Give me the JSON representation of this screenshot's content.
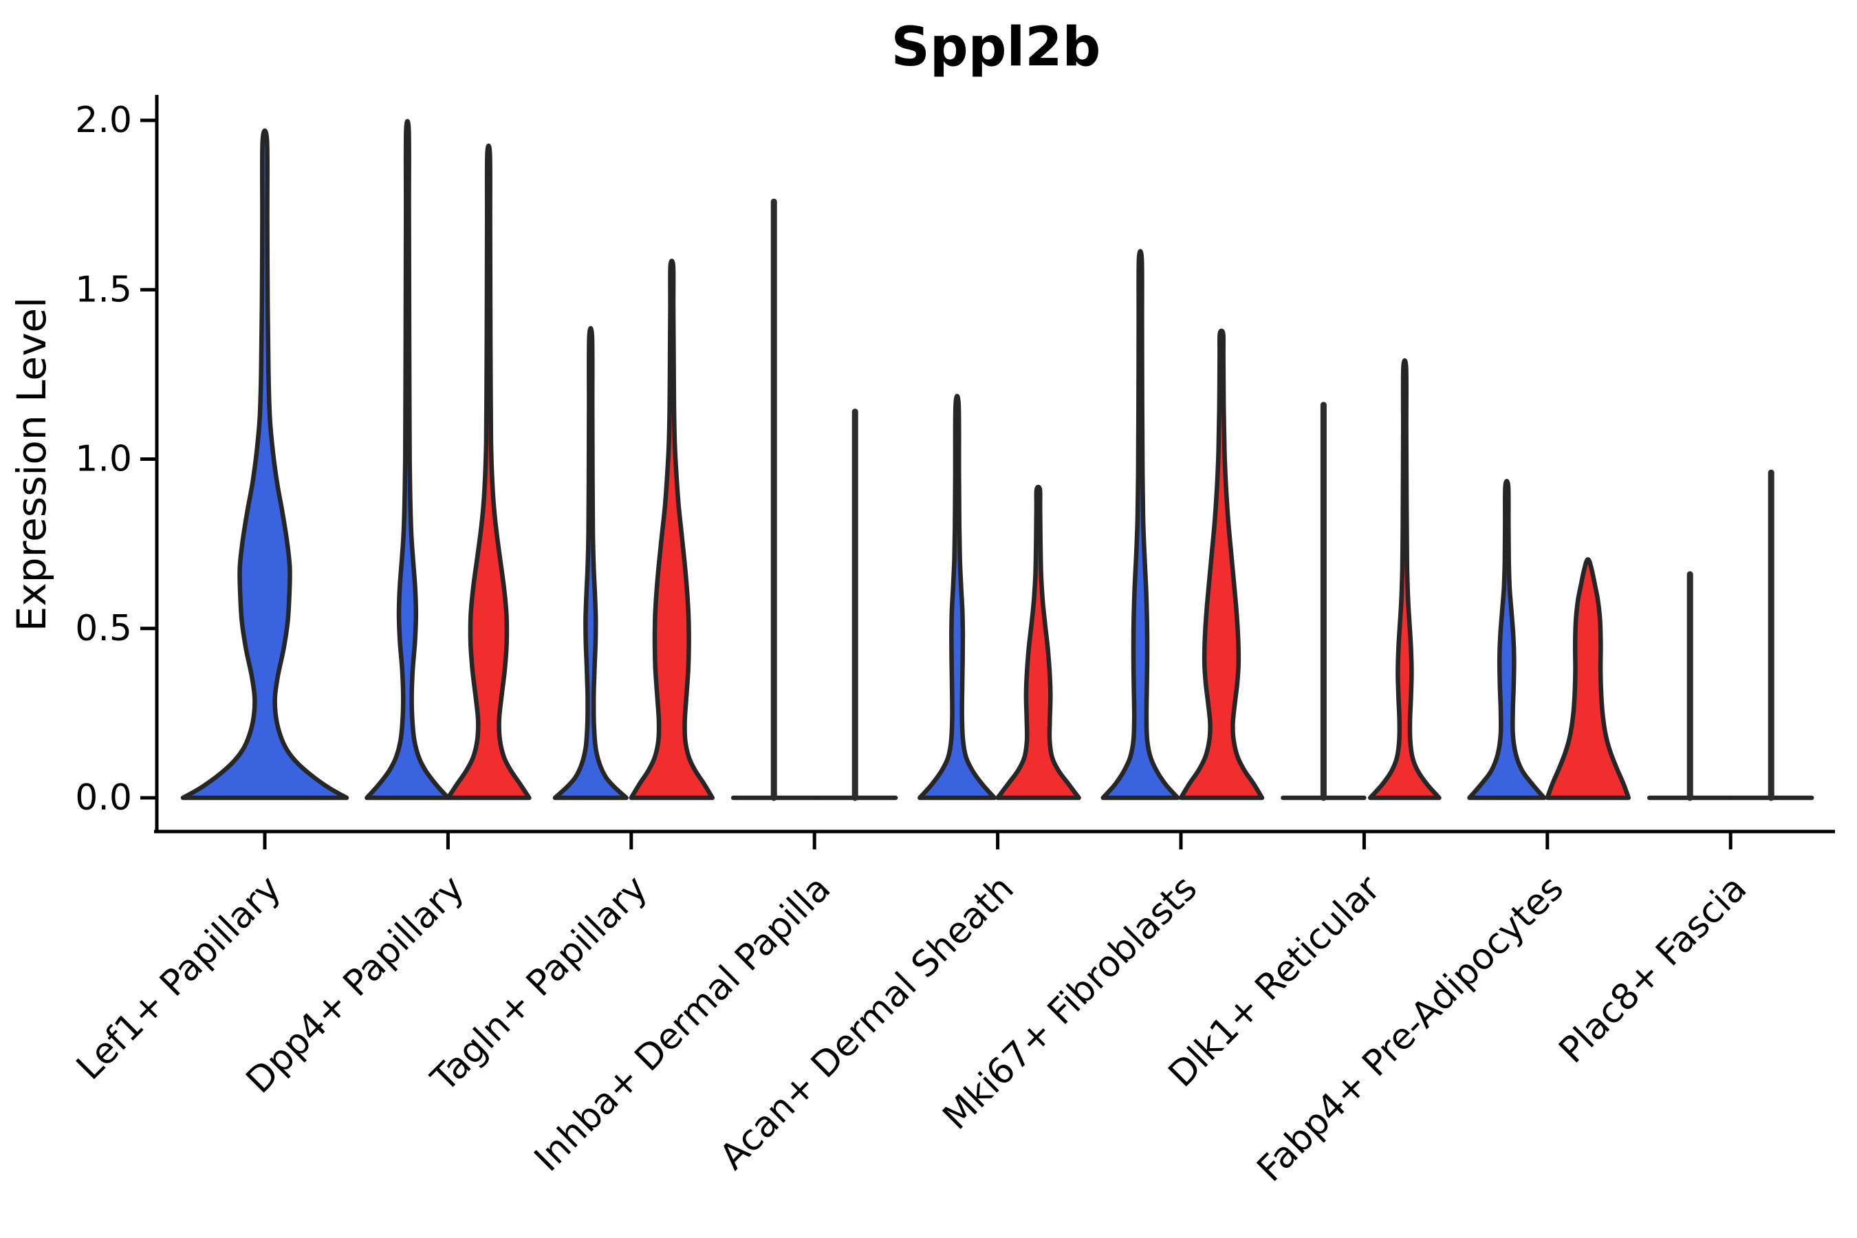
{
  "chart_data": {
    "type": "violin",
    "title": "Sppl2b",
    "ylabel": "Expression Level",
    "xlabel": "",
    "ylim": [
      0,
      2.08
    ],
    "grid": false,
    "legend": "none",
    "yticks": [
      {
        "value": 0.0,
        "label": "0.0"
      },
      {
        "value": 0.5,
        "label": "0.5"
      },
      {
        "value": 1.0,
        "label": "1.0"
      },
      {
        "value": 1.5,
        "label": "1.5"
      },
      {
        "value": 2.0,
        "label": "2.0"
      }
    ],
    "categories": [
      "Lef1+ Papillary",
      "Dpp4+ Papillary",
      "Tagln+ Papillary",
      "Inhba+ Dermal Papilla",
      "Acan+ Dermal Sheath",
      "Mki67+ Fibroblasts",
      "Dlk1+ Reticular",
      "Fabp4+ Pre-Adipocytes",
      "Plac8+ Fascia"
    ],
    "colors": {
      "blue": "#3A63E0",
      "red": "#F12D2D",
      "outline": "#262626"
    },
    "violins": [
      {
        "category_index": 0,
        "category": "Lef1+ Papillary",
        "side": "center",
        "color": "blue",
        "shape": "violin",
        "max_expression": 1.94,
        "profile": [
          [
            0,
            1.0
          ],
          [
            0.03,
            0.78
          ],
          [
            0.07,
            0.55
          ],
          [
            0.11,
            0.37
          ],
          [
            0.15,
            0.25
          ],
          [
            0.2,
            0.17
          ],
          [
            0.25,
            0.13
          ],
          [
            0.3,
            0.125
          ],
          [
            0.36,
            0.16
          ],
          [
            0.44,
            0.23
          ],
          [
            0.52,
            0.28
          ],
          [
            0.6,
            0.3
          ],
          [
            0.68,
            0.305
          ],
          [
            0.76,
            0.27
          ],
          [
            0.85,
            0.21
          ],
          [
            0.93,
            0.15
          ],
          [
            1.02,
            0.1
          ],
          [
            1.12,
            0.062
          ],
          [
            1.25,
            0.045
          ],
          [
            1.45,
            0.035
          ],
          [
            1.7,
            0.03
          ],
          [
            1.94,
            0.027
          ]
        ]
      },
      {
        "category_index": 1,
        "category": "Dpp4+ Papillary",
        "side": "left",
        "color": "blue",
        "shape": "violin",
        "max_expression": 1.97,
        "profile": [
          [
            0,
            1.0
          ],
          [
            0.04,
            0.7
          ],
          [
            0.08,
            0.45
          ],
          [
            0.12,
            0.28
          ],
          [
            0.17,
            0.17
          ],
          [
            0.23,
            0.12
          ],
          [
            0.3,
            0.105
          ],
          [
            0.38,
            0.13
          ],
          [
            0.46,
            0.185
          ],
          [
            0.54,
            0.21
          ],
          [
            0.62,
            0.19
          ],
          [
            0.7,
            0.14
          ],
          [
            0.78,
            0.095
          ],
          [
            0.88,
            0.07
          ],
          [
            1.0,
            0.055
          ],
          [
            1.2,
            0.047
          ],
          [
            1.5,
            0.04
          ],
          [
            1.75,
            0.036
          ],
          [
            1.97,
            0.033
          ]
        ]
      },
      {
        "category_index": 1,
        "category": "Dpp4+ Papillary",
        "side": "right",
        "color": "red",
        "shape": "violin",
        "max_expression": 1.9,
        "profile": [
          [
            0,
            1.0
          ],
          [
            0.04,
            0.78
          ],
          [
            0.08,
            0.55
          ],
          [
            0.12,
            0.38
          ],
          [
            0.17,
            0.28
          ],
          [
            0.23,
            0.26
          ],
          [
            0.3,
            0.32
          ],
          [
            0.38,
            0.4
          ],
          [
            0.46,
            0.445
          ],
          [
            0.54,
            0.44
          ],
          [
            0.62,
            0.38
          ],
          [
            0.7,
            0.29
          ],
          [
            0.78,
            0.2
          ],
          [
            0.86,
            0.13
          ],
          [
            0.95,
            0.085
          ],
          [
            1.05,
            0.06
          ],
          [
            1.2,
            0.05
          ],
          [
            1.45,
            0.042
          ],
          [
            1.7,
            0.037
          ],
          [
            1.9,
            0.033
          ]
        ]
      },
      {
        "category_index": 2,
        "category": "Tagln+ Papillary",
        "side": "left",
        "color": "blue",
        "shape": "violin",
        "max_expression": 1.36,
        "profile": [
          [
            0,
            0.88
          ],
          [
            0.03,
            0.6
          ],
          [
            0.06,
            0.38
          ],
          [
            0.1,
            0.22
          ],
          [
            0.15,
            0.12
          ],
          [
            0.22,
            0.08
          ],
          [
            0.3,
            0.075
          ],
          [
            0.38,
            0.095
          ],
          [
            0.46,
            0.12
          ],
          [
            0.53,
            0.125
          ],
          [
            0.6,
            0.105
          ],
          [
            0.68,
            0.075
          ],
          [
            0.78,
            0.055
          ],
          [
            0.95,
            0.045
          ],
          [
            1.15,
            0.04
          ],
          [
            1.36,
            0.035
          ]
        ]
      },
      {
        "category_index": 2,
        "category": "Tagln+ Papillary",
        "side": "right",
        "color": "red",
        "shape": "violin",
        "max_expression": 1.57,
        "profile": [
          [
            0,
            1.0
          ],
          [
            0.04,
            0.8
          ],
          [
            0.08,
            0.58
          ],
          [
            0.12,
            0.42
          ],
          [
            0.17,
            0.33
          ],
          [
            0.23,
            0.32
          ],
          [
            0.3,
            0.36
          ],
          [
            0.38,
            0.405
          ],
          [
            0.46,
            0.42
          ],
          [
            0.54,
            0.41
          ],
          [
            0.62,
            0.37
          ],
          [
            0.7,
            0.31
          ],
          [
            0.78,
            0.24
          ],
          [
            0.86,
            0.17
          ],
          [
            0.95,
            0.115
          ],
          [
            1.04,
            0.075
          ],
          [
            1.15,
            0.055
          ],
          [
            1.3,
            0.045
          ],
          [
            1.45,
            0.038
          ],
          [
            1.57,
            0.034
          ]
        ]
      },
      {
        "category_index": 3,
        "category": "Inhba+ Dermal Papilla",
        "side": "left",
        "color": "blue",
        "shape": "spike",
        "max_expression": 1.76
      },
      {
        "category_index": 3,
        "category": "Inhba+ Dermal Papilla",
        "side": "right",
        "color": "red",
        "shape": "spike",
        "max_expression": 1.14
      },
      {
        "category_index": 4,
        "category": "Acan+ Dermal Sheath",
        "side": "left",
        "color": "blue",
        "shape": "violin",
        "max_expression": 1.16,
        "profile": [
          [
            0,
            0.92
          ],
          [
            0.04,
            0.62
          ],
          [
            0.08,
            0.38
          ],
          [
            0.12,
            0.22
          ],
          [
            0.17,
            0.145
          ],
          [
            0.24,
            0.12
          ],
          [
            0.32,
            0.125
          ],
          [
            0.4,
            0.135
          ],
          [
            0.48,
            0.14
          ],
          [
            0.55,
            0.13
          ],
          [
            0.62,
            0.1
          ],
          [
            0.7,
            0.07
          ],
          [
            0.8,
            0.055
          ],
          [
            0.95,
            0.045
          ],
          [
            1.16,
            0.038
          ]
        ]
      },
      {
        "category_index": 4,
        "category": "Acan+ Dermal Sheath",
        "side": "right",
        "color": "red",
        "shape": "violin",
        "max_expression": 0.91,
        "profile": [
          [
            0,
            1.0
          ],
          [
            0.04,
            0.75
          ],
          [
            0.08,
            0.5
          ],
          [
            0.12,
            0.34
          ],
          [
            0.17,
            0.28
          ],
          [
            0.23,
            0.285
          ],
          [
            0.3,
            0.3
          ],
          [
            0.37,
            0.28
          ],
          [
            0.44,
            0.235
          ],
          [
            0.51,
            0.17
          ],
          [
            0.58,
            0.11
          ],
          [
            0.66,
            0.07
          ],
          [
            0.75,
            0.055
          ],
          [
            0.85,
            0.045
          ],
          [
            0.91,
            0.04
          ]
        ]
      },
      {
        "category_index": 5,
        "category": "Mki67+ Fibroblasts",
        "side": "left",
        "color": "blue",
        "shape": "violin",
        "max_expression": 1.59,
        "profile": [
          [
            0,
            0.92
          ],
          [
            0.04,
            0.62
          ],
          [
            0.08,
            0.4
          ],
          [
            0.12,
            0.25
          ],
          [
            0.17,
            0.17
          ],
          [
            0.24,
            0.15
          ],
          [
            0.32,
            0.16
          ],
          [
            0.42,
            0.17
          ],
          [
            0.52,
            0.165
          ],
          [
            0.62,
            0.14
          ],
          [
            0.72,
            0.1
          ],
          [
            0.82,
            0.07
          ],
          [
            0.95,
            0.055
          ],
          [
            1.15,
            0.045
          ],
          [
            1.4,
            0.04
          ],
          [
            1.59,
            0.035
          ]
        ]
      },
      {
        "category_index": 5,
        "category": "Mki67+ Fibroblasts",
        "side": "right",
        "color": "red",
        "shape": "violin",
        "max_expression": 1.37,
        "profile": [
          [
            0,
            1.0
          ],
          [
            0.04,
            0.8
          ],
          [
            0.08,
            0.57
          ],
          [
            0.12,
            0.4
          ],
          [
            0.17,
            0.3
          ],
          [
            0.22,
            0.28
          ],
          [
            0.28,
            0.33
          ],
          [
            0.34,
            0.39
          ],
          [
            0.4,
            0.42
          ],
          [
            0.47,
            0.41
          ],
          [
            0.55,
            0.37
          ],
          [
            0.63,
            0.31
          ],
          [
            0.72,
            0.24
          ],
          [
            0.82,
            0.165
          ],
          [
            0.92,
            0.11
          ],
          [
            1.02,
            0.075
          ],
          [
            1.15,
            0.055
          ],
          [
            1.3,
            0.045
          ],
          [
            1.37,
            0.04
          ]
        ]
      },
      {
        "category_index": 6,
        "category": "Dlk1+ Reticular",
        "side": "left",
        "color": "blue",
        "shape": "spike",
        "max_expression": 1.16
      },
      {
        "category_index": 6,
        "category": "Dlk1+ Reticular",
        "side": "right",
        "color": "red",
        "shape": "violin",
        "max_expression": 1.27,
        "profile": [
          [
            0,
            0.85
          ],
          [
            0.04,
            0.55
          ],
          [
            0.08,
            0.32
          ],
          [
            0.12,
            0.19
          ],
          [
            0.17,
            0.135
          ],
          [
            0.23,
            0.13
          ],
          [
            0.3,
            0.155
          ],
          [
            0.37,
            0.17
          ],
          [
            0.44,
            0.155
          ],
          [
            0.51,
            0.12
          ],
          [
            0.58,
            0.085
          ],
          [
            0.67,
            0.06
          ],
          [
            0.78,
            0.05
          ],
          [
            0.95,
            0.042
          ],
          [
            1.1,
            0.038
          ],
          [
            1.27,
            0.034
          ]
        ]
      },
      {
        "category_index": 7,
        "category": "Fabp4+ Pre-Adipocytes",
        "side": "left",
        "color": "blue",
        "shape": "violin",
        "max_expression": 0.92,
        "profile": [
          [
            0,
            0.92
          ],
          [
            0.04,
            0.63
          ],
          [
            0.08,
            0.38
          ],
          [
            0.13,
            0.22
          ],
          [
            0.19,
            0.15
          ],
          [
            0.26,
            0.15
          ],
          [
            0.33,
            0.17
          ],
          [
            0.41,
            0.18
          ],
          [
            0.48,
            0.16
          ],
          [
            0.55,
            0.115
          ],
          [
            0.62,
            0.07
          ],
          [
            0.7,
            0.05
          ],
          [
            0.8,
            0.042
          ],
          [
            0.92,
            0.036
          ]
        ]
      },
      {
        "category_index": 7,
        "category": "Fabp4+ Pre-Adipocytes",
        "side": "right",
        "color": "red",
        "shape": "violin",
        "max_expression": 0.7,
        "profile": [
          [
            0,
            1.0
          ],
          [
            0.04,
            0.88
          ],
          [
            0.09,
            0.7
          ],
          [
            0.14,
            0.54
          ],
          [
            0.19,
            0.43
          ],
          [
            0.25,
            0.36
          ],
          [
            0.31,
            0.325
          ],
          [
            0.38,
            0.31
          ],
          [
            0.45,
            0.315
          ],
          [
            0.52,
            0.3
          ],
          [
            0.58,
            0.25
          ],
          [
            0.63,
            0.17
          ],
          [
            0.67,
            0.1
          ],
          [
            0.7,
            0.03
          ]
        ]
      },
      {
        "category_index": 8,
        "category": "Plac8+ Fascia",
        "side": "left",
        "color": "blue",
        "shape": "spike",
        "max_expression": 0.66
      },
      {
        "category_index": 8,
        "category": "Plac8+ Fascia",
        "side": "right",
        "color": "red",
        "shape": "spike",
        "max_expression": 0.96
      }
    ]
  }
}
